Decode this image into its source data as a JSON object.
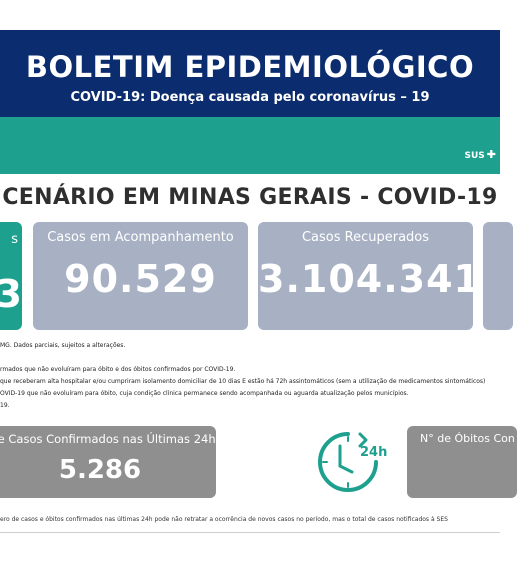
{
  "header": {
    "title": "BOLETIM EPIDEMIOLÓGICO",
    "subtitle": "COVID-19: Doença causada pelo coronavírus – 19",
    "logo_text": "SUS"
  },
  "section_title": "CENÁRIO EM MINAS GERAIS - COVID-19",
  "cards": {
    "left_fragment_label": "s",
    "left_fragment_value": "3",
    "acompanhamento": {
      "label": "Casos em Acompanhamento",
      "value": "90.529"
    },
    "recuperados": {
      "label": "Casos Recuperados",
      "value": "3.104.341"
    }
  },
  "notes": [
    "MG. Dados parciais, sujeitos a alterações.",
    "rmados que não evoluíram para óbito e dos óbitos confirmados por COVID-19.",
    "que receberam alta hospitalar e/ou cumpriram isolamento domiciliar de 10 dias E estão há 72h assintomáticos (sem a utilização de medicamentos sintomáticos)",
    "OVID-19 que não evoluíram para óbito, cuja condição clínica permanece sendo acompanhada ou aguarda atualização pelos municípios.",
    "19."
  ],
  "last24h": {
    "cases_label": "de Casos Confirmados nas Últimas 24h",
    "cases_value": "5.286",
    "deaths_label": "N° de Óbitos Con",
    "clock_label": "24h"
  },
  "footer_note": "ero de casos e óbitos confirmados nas últimas 24h pode não retratar a ocorrência de novos casos no período, mas o total de casos notificados à SES",
  "colors": {
    "header_bg": "#0b2c6e",
    "teal": "#1ea08f",
    "card_bg": "#a8b1c4",
    "box_bg": "#8f8f8f"
  }
}
